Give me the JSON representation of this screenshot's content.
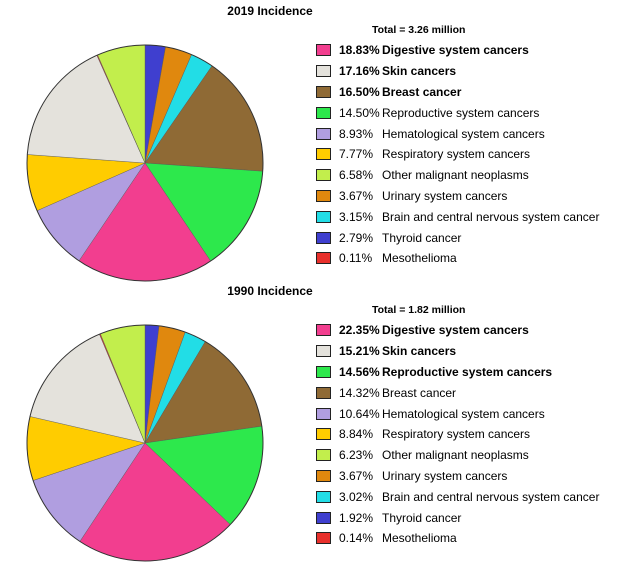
{
  "chart_data": [
    {
      "type": "pie",
      "title": "2019 Incidence",
      "subtitle": "Total = 3.26 million",
      "start_angle_deg": 0,
      "direction": "clockwise",
      "slices": [
        {
          "label": "Thyroid cancer",
          "pct_label": "2.79%",
          "value": 2.79,
          "color": "#3f3fcf",
          "bold": false
        },
        {
          "label": "Urinary system cancers",
          "pct_label": "3.67%",
          "value": 3.67,
          "color": "#e0880e",
          "bold": false
        },
        {
          "label": "Brain and central nervous system cancer",
          "pct_label": "3.15%",
          "value": 3.15,
          "color": "#22dde6",
          "bold": false
        },
        {
          "label": "Breast cancer",
          "pct_label": "16.50%",
          "value": 16.5,
          "color": "#8f6a35",
          "bold": true
        },
        {
          "label": "Reproductive system cancers",
          "pct_label": "14.50%",
          "value": 14.5,
          "color": "#2de84c",
          "bold": false
        },
        {
          "label": "Digestive system cancers",
          "pct_label": "18.83%",
          "value": 18.83,
          "color": "#f23e8f",
          "bold": true
        },
        {
          "label": "Hematological system cancers",
          "pct_label": "8.93%",
          "value": 8.93,
          "color": "#b09ee0",
          "bold": false
        },
        {
          "label": "Respiratory system cancers",
          "pct_label": "7.77%",
          "value": 7.77,
          "color": "#ffcc00",
          "bold": false
        },
        {
          "label": "Skin cancers",
          "pct_label": "17.16%",
          "value": 17.16,
          "color": "#e4e2dc",
          "bold": true
        },
        {
          "label": "Mesothelioma",
          "pct_label": "0.11%",
          "value": 0.11,
          "color": "#e8302c",
          "bold": false
        },
        {
          "label": "Other malignant neoplasms",
          "pct_label": "6.58%",
          "value": 6.58,
          "color": "#c2ee4c",
          "bold": false
        }
      ],
      "legend_order": [
        5,
        8,
        3,
        4,
        6,
        7,
        10,
        1,
        2,
        0,
        9
      ]
    },
    {
      "type": "pie",
      "title": "1990 Incidence",
      "subtitle": "Total = 1.82 million",
      "start_angle_deg": 0,
      "direction": "clockwise",
      "slices": [
        {
          "label": "Thyroid cancer",
          "pct_label": "1.92%",
          "value": 1.92,
          "color": "#3f3fcf",
          "bold": false
        },
        {
          "label": "Urinary system cancers",
          "pct_label": "3.67%",
          "value": 3.67,
          "color": "#e0880e",
          "bold": false
        },
        {
          "label": "Brain and central nervous system cancer",
          "pct_label": "3.02%",
          "value": 3.02,
          "color": "#22dde6",
          "bold": false
        },
        {
          "label": "Breast cancer",
          "pct_label": "14.32%",
          "value": 14.32,
          "color": "#8f6a35",
          "bold": false
        },
        {
          "label": "Reproductive system cancers",
          "pct_label": "14.56%",
          "value": 14.56,
          "color": "#2de84c",
          "bold": true
        },
        {
          "label": "Digestive system cancers",
          "pct_label": "22.35%",
          "value": 22.35,
          "color": "#f23e8f",
          "bold": true
        },
        {
          "label": "Hematological system cancers",
          "pct_label": "10.64%",
          "value": 10.64,
          "color": "#b09ee0",
          "bold": false
        },
        {
          "label": "Respiratory system cancers",
          "pct_label": "8.84%",
          "value": 8.84,
          "color": "#ffcc00",
          "bold": false
        },
        {
          "label": "Skin cancers",
          "pct_label": "15.21%",
          "value": 15.21,
          "color": "#e4e2dc",
          "bold": true
        },
        {
          "label": "Mesothelioma",
          "pct_label": "0.14%",
          "value": 0.14,
          "color": "#e8302c",
          "bold": false
        },
        {
          "label": "Other malignant neoplasms",
          "pct_label": "6.23%",
          "value": 6.23,
          "color": "#c2ee4c",
          "bold": false
        }
      ],
      "legend_order": [
        5,
        8,
        4,
        3,
        6,
        7,
        10,
        1,
        2,
        0,
        9
      ]
    }
  ]
}
